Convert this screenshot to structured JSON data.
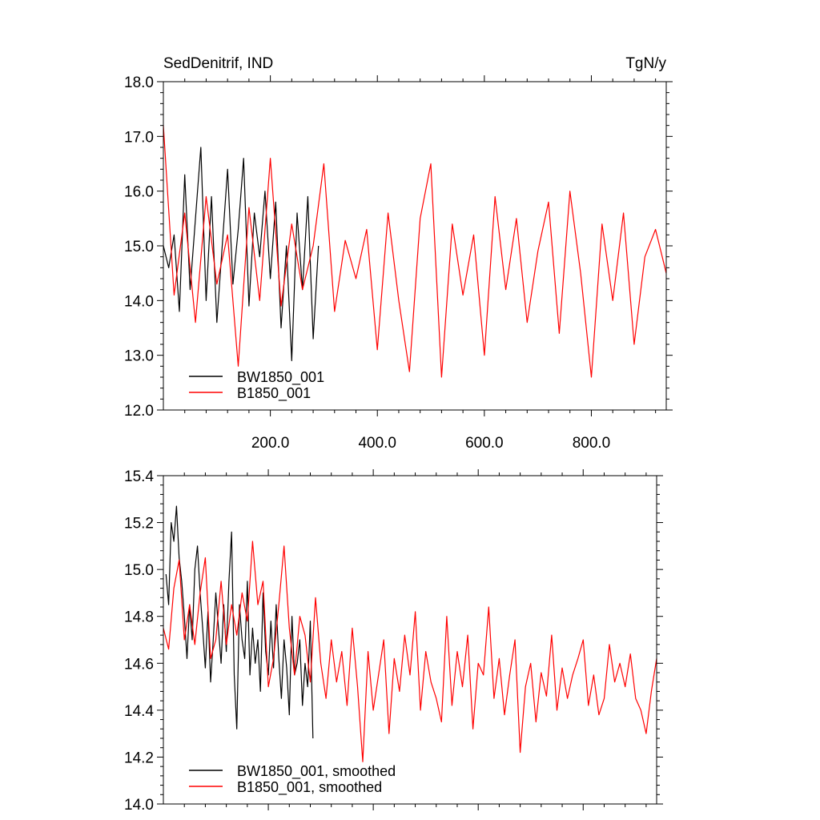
{
  "chart_data": [
    {
      "type": "line",
      "title_left": "SedDenitrif, IND",
      "title_right": "TgN/y",
      "xlim": [
        0,
        940
      ],
      "ylim": [
        12.0,
        18.0
      ],
      "x_ticks": [
        200,
        400,
        600,
        800
      ],
      "x_tick_labels": [
        "200.0",
        "400.0",
        "600.0",
        "800.0"
      ],
      "y_ticks": [
        12,
        13,
        14,
        15,
        16,
        17,
        18
      ],
      "y_tick_labels": [
        "12.0",
        "13.0",
        "14.0",
        "15.0",
        "16.0",
        "17.0",
        "18.0"
      ],
      "grid": false,
      "legend_position": "bottom-left",
      "series": [
        {
          "name": "BW1850_001",
          "color": "#000000",
          "x": [
            0,
            10,
            20,
            30,
            40,
            50,
            60,
            70,
            80,
            90,
            100,
            110,
            120,
            130,
            140,
            150,
            160,
            170,
            180,
            190,
            200,
            210,
            220,
            230,
            240,
            250,
            260,
            270,
            280,
            290
          ],
          "values": [
            15.0,
            14.6,
            15.2,
            13.8,
            16.3,
            14.2,
            15.5,
            16.8,
            14.0,
            15.9,
            13.6,
            15.0,
            16.4,
            14.3,
            15.3,
            16.6,
            13.9,
            15.6,
            14.8,
            16.0,
            14.4,
            15.8,
            13.5,
            15.0,
            12.9,
            15.6,
            14.2,
            15.9,
            13.3,
            15.0
          ]
        },
        {
          "name": "B1850_001",
          "color": "#ff0000",
          "x": [
            0,
            20,
            40,
            60,
            80,
            100,
            120,
            140,
            160,
            180,
            200,
            220,
            240,
            260,
            280,
            300,
            320,
            340,
            360,
            380,
            400,
            420,
            440,
            460,
            480,
            500,
            520,
            540,
            560,
            580,
            600,
            620,
            640,
            660,
            680,
            700,
            720,
            740,
            760,
            780,
            800,
            820,
            840,
            860,
            880,
            900,
            920,
            940
          ],
          "values": [
            17.2,
            14.1,
            15.6,
            13.6,
            15.9,
            14.3,
            15.2,
            12.8,
            15.7,
            14.0,
            16.6,
            13.9,
            15.4,
            14.2,
            15.0,
            16.5,
            13.8,
            15.1,
            14.4,
            15.3,
            13.1,
            15.6,
            14.0,
            12.7,
            15.5,
            16.5,
            12.6,
            15.4,
            14.1,
            15.2,
            13.0,
            15.9,
            14.2,
            15.5,
            13.6,
            14.9,
            15.8,
            13.4,
            16.0,
            14.5,
            12.6,
            15.4,
            14.0,
            15.6,
            13.2,
            14.8,
            15.3,
            14.5
          ]
        }
      ]
    },
    {
      "type": "line",
      "xlim": [
        0,
        940
      ],
      "ylim": [
        14.0,
        15.4
      ],
      "y_ticks": [
        14.0,
        14.2,
        14.4,
        14.6,
        14.8,
        15.0,
        15.2,
        15.4
      ],
      "y_tick_labels": [
        "14.0",
        "14.2",
        "14.4",
        "14.6",
        "14.8",
        "15.0",
        "15.2",
        "15.4"
      ],
      "grid": false,
      "legend_position": "bottom-left",
      "series": [
        {
          "name": "BW1850_001, smoothed",
          "color": "#000000",
          "x": [
            5,
            10,
            15,
            20,
            25,
            30,
            35,
            40,
            45,
            50,
            55,
            60,
            65,
            70,
            75,
            80,
            85,
            90,
            95,
            100,
            105,
            110,
            115,
            120,
            125,
            130,
            135,
            140,
            145,
            150,
            155,
            160,
            165,
            170,
            175,
            180,
            185,
            190,
            195,
            200,
            205,
            210,
            215,
            220,
            225,
            230,
            235,
            240,
            245,
            250,
            255,
            260,
            265,
            270,
            275,
            280,
            285
          ],
          "values": [
            14.98,
            14.85,
            15.2,
            15.12,
            15.27,
            15.05,
            14.95,
            14.8,
            14.62,
            14.85,
            14.7,
            15.0,
            15.1,
            14.9,
            14.75,
            14.58,
            14.82,
            14.52,
            14.7,
            14.9,
            14.75,
            14.6,
            14.85,
            14.65,
            14.95,
            15.16,
            14.55,
            14.32,
            14.85,
            14.7,
            14.62,
            14.95,
            14.55,
            14.75,
            14.6,
            14.7,
            14.48,
            14.9,
            14.65,
            14.55,
            14.78,
            14.58,
            14.85,
            14.62,
            14.45,
            14.7,
            14.58,
            14.38,
            14.8,
            14.55,
            14.6,
            14.7,
            14.42,
            14.6,
            14.5,
            14.78,
            14.28
          ]
        },
        {
          "name": "B1850_001, smoothed",
          "color": "#ff0000",
          "x": [
            0,
            10,
            20,
            30,
            40,
            50,
            60,
            70,
            80,
            90,
            100,
            110,
            120,
            130,
            140,
            150,
            160,
            170,
            180,
            190,
            200,
            210,
            220,
            230,
            240,
            250,
            260,
            270,
            280,
            290,
            300,
            310,
            320,
            330,
            340,
            350,
            360,
            370,
            380,
            390,
            400,
            410,
            420,
            430,
            440,
            450,
            460,
            470,
            480,
            490,
            500,
            510,
            520,
            530,
            540,
            550,
            560,
            570,
            580,
            590,
            600,
            610,
            620,
            630,
            640,
            650,
            660,
            670,
            680,
            690,
            700,
            710,
            720,
            730,
            740,
            750,
            760,
            770,
            780,
            790,
            800,
            810,
            820,
            830,
            840,
            850,
            860,
            870,
            880,
            890,
            900,
            910,
            920,
            930,
            940
          ],
          "values": [
            14.75,
            14.66,
            14.92,
            15.04,
            14.7,
            14.85,
            14.68,
            14.9,
            15.05,
            14.62,
            14.7,
            14.95,
            14.68,
            14.85,
            14.72,
            14.9,
            14.78,
            15.12,
            14.85,
            14.95,
            14.5,
            14.62,
            14.85,
            15.1,
            14.75,
            14.55,
            14.8,
            14.72,
            14.52,
            14.88,
            14.6,
            14.45,
            14.7,
            14.52,
            14.65,
            14.42,
            14.75,
            14.5,
            14.18,
            14.65,
            14.4,
            14.55,
            14.7,
            14.3,
            14.62,
            14.48,
            14.72,
            14.55,
            14.82,
            14.4,
            14.65,
            14.52,
            14.45,
            14.35,
            14.8,
            14.42,
            14.65,
            14.5,
            14.72,
            14.32,
            14.6,
            14.55,
            14.84,
            14.45,
            14.62,
            14.38,
            14.55,
            14.7,
            14.22,
            14.5,
            14.6,
            14.35,
            14.56,
            14.46,
            14.72,
            14.4,
            14.58,
            14.45,
            14.55,
            14.62,
            14.7,
            14.42,
            14.55,
            14.38,
            14.45,
            14.68,
            14.52,
            14.6,
            14.5,
            14.64,
            14.45,
            14.4,
            14.3,
            14.48,
            14.62
          ]
        }
      ]
    }
  ]
}
